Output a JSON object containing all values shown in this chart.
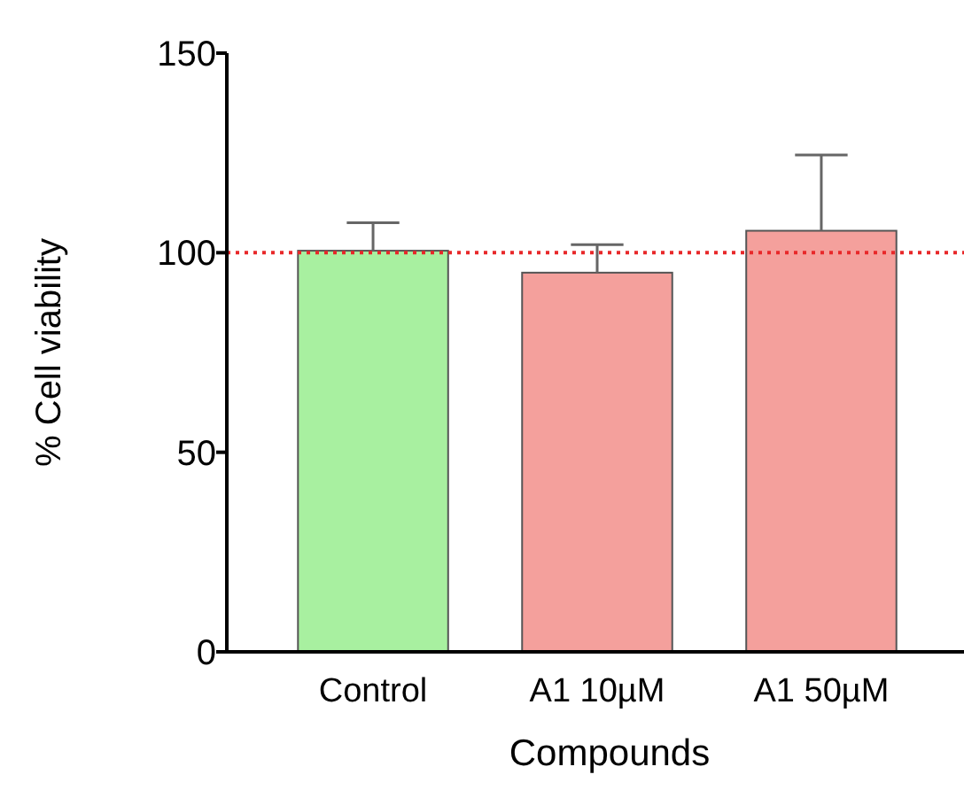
{
  "chart_data": {
    "type": "bar",
    "xlabel": "Compounds",
    "ylabel": "% Cell viability",
    "categories": [
      "Control",
      "A1 10µM",
      "A1 50µM"
    ],
    "values": [
      100.5,
      95,
      105.5
    ],
    "colors": [
      "#a8f0a0",
      "#f4a09c",
      "#f4a09c"
    ],
    "errors": [
      [
        100.5,
        107.5
      ],
      [
        95,
        102
      ],
      [
        105.5,
        124.5
      ]
    ],
    "ylim": [
      0,
      150
    ],
    "yticks": [
      0,
      50,
      100,
      150
    ],
    "ref_lines": [
      {
        "axis": "y",
        "value": 100,
        "color": "#e8282a",
        "line_style": "dotted"
      }
    ],
    "grid": false
  }
}
